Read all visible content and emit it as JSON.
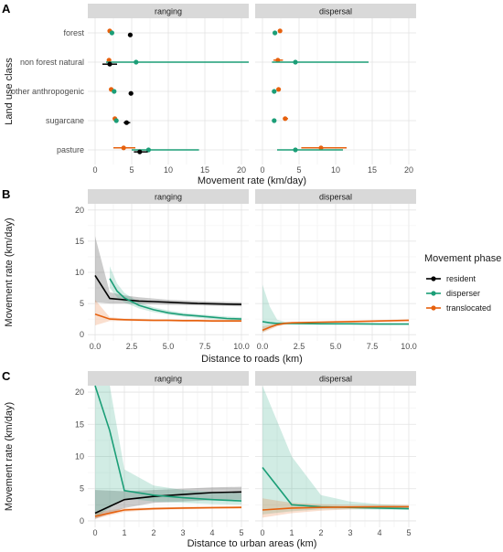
{
  "chart_data": {
    "legend": {
      "title": "Movement phase",
      "placement": "right",
      "entries": [
        {
          "name": "resident",
          "color": "#000000"
        },
        {
          "name": "disperser",
          "color": "#1b9e77"
        },
        {
          "name": "translocated",
          "color": "#e6610e"
        }
      ]
    },
    "panels": [
      {
        "tag": "A",
        "type": "dot-interval",
        "xlabel": "Movement rate (km/day)",
        "ylabel": "Land use class",
        "xlim": [
          -1,
          21
        ],
        "xticks": [
          0,
          5,
          10,
          15,
          20
        ],
        "categories": [
          "forest",
          "non forest natural",
          "other anthropogenic",
          "sugarcane",
          "pasture"
        ],
        "facets": [
          {
            "name": "ranging",
            "points": [
              {
                "cat": "forest",
                "series": "translocated",
                "est": 2.0,
                "lo": 1.8,
                "hi": 2.2
              },
              {
                "cat": "forest",
                "series": "disperser",
                "est": 2.3,
                "lo": 2.1,
                "hi": 2.5
              },
              {
                "cat": "forest",
                "series": "resident",
                "est": 4.8,
                "lo": 4.5,
                "hi": 5.1
              },
              {
                "cat": "non forest natural",
                "series": "translocated",
                "est": 1.9,
                "lo": 1.7,
                "hi": 2.1
              },
              {
                "cat": "non forest natural",
                "series": "disperser",
                "est": 5.6,
                "lo": 1.5,
                "hi": 21
              },
              {
                "cat": "non forest natural",
                "series": "resident",
                "est": 2.0,
                "lo": 1.0,
                "hi": 3.0
              },
              {
                "cat": "other anthropogenic",
                "series": "translocated",
                "est": 2.2,
                "lo": 2.0,
                "hi": 2.4
              },
              {
                "cat": "other anthropogenic",
                "series": "disperser",
                "est": 2.6,
                "lo": 2.4,
                "hi": 2.8
              },
              {
                "cat": "other anthropogenic",
                "series": "resident",
                "est": 4.9,
                "lo": 4.6,
                "hi": 5.2
              },
              {
                "cat": "sugarcane",
                "series": "translocated",
                "est": 2.7,
                "lo": 2.5,
                "hi": 2.9
              },
              {
                "cat": "sugarcane",
                "series": "disperser",
                "est": 2.9,
                "lo": 2.7,
                "hi": 3.1
              },
              {
                "cat": "sugarcane",
                "series": "resident",
                "est": 4.3,
                "lo": 3.9,
                "hi": 4.8
              },
              {
                "cat": "pasture",
                "series": "translocated",
                "est": 3.9,
                "lo": 2.5,
                "hi": 5.5
              },
              {
                "cat": "pasture",
                "series": "disperser",
                "est": 7.3,
                "lo": 5.0,
                "hi": 14.2
              },
              {
                "cat": "pasture",
                "series": "resident",
                "est": 6.1,
                "lo": 5.3,
                "hi": 7.2
              }
            ]
          },
          {
            "name": "dispersal",
            "points": [
              {
                "cat": "forest",
                "series": "translocated",
                "est": 2.4,
                "lo": 2.2,
                "hi": 2.6
              },
              {
                "cat": "forest",
                "series": "disperser",
                "est": 1.7,
                "lo": 1.5,
                "hi": 1.9
              },
              {
                "cat": "non forest natural",
                "series": "translocated",
                "est": 2.1,
                "lo": 1.5,
                "hi": 2.8
              },
              {
                "cat": "non forest natural",
                "series": "disperser",
                "est": 4.5,
                "lo": 1.3,
                "hi": 14.5
              },
              {
                "cat": "other anthropogenic",
                "series": "translocated",
                "est": 2.2,
                "lo": 2.0,
                "hi": 2.4
              },
              {
                "cat": "other anthropogenic",
                "series": "disperser",
                "est": 1.6,
                "lo": 1.4,
                "hi": 1.8
              },
              {
                "cat": "sugarcane",
                "series": "translocated",
                "est": 3.1,
                "lo": 2.8,
                "hi": 3.5
              },
              {
                "cat": "sugarcane",
                "series": "disperser",
                "est": 1.6,
                "lo": 1.4,
                "hi": 1.8
              },
              {
                "cat": "pasture",
                "series": "translocated",
                "est": 8.0,
                "lo": 5.3,
                "hi": 11.5
              },
              {
                "cat": "pasture",
                "series": "disperser",
                "est": 4.5,
                "lo": 2.0,
                "hi": 11.0
              }
            ]
          }
        ]
      },
      {
        "tag": "B",
        "type": "line-ribbon",
        "xlabel": "Distance to roads (km)",
        "ylabel": "Movement rate (km/day)",
        "xlim": [
          -0.5,
          10.5
        ],
        "ylim": [
          -1,
          21
        ],
        "xticks": [
          0,
          2.5,
          5,
          7.5,
          10
        ],
        "xtick_labels": [
          "0.0",
          "2.5",
          "5.0",
          "7.5",
          "10.0"
        ],
        "yticks": [
          0,
          5,
          10,
          15,
          20
        ],
        "facets": [
          {
            "name": "ranging",
            "series": [
              {
                "series": "resident",
                "x": [
                  0,
                  1,
                  2,
                  3,
                  4,
                  5,
                  6,
                  7,
                  8,
                  9,
                  10
                ],
                "y": [
                  9.5,
                  5.8,
                  5.6,
                  5.4,
                  5.3,
                  5.2,
                  5.1,
                  5.0,
                  4.95,
                  4.9,
                  4.85
                ],
                "lo": [
                  5.2,
                  5.0,
                  5.0,
                  4.9,
                  4.85,
                  4.8,
                  4.75,
                  4.7,
                  4.65,
                  4.6,
                  4.55
                ],
                "hi": [
                  15.8,
                  6.8,
                  6.3,
                  6.0,
                  5.8,
                  5.6,
                  5.5,
                  5.4,
                  5.3,
                  5.25,
                  5.2
                ]
              },
              {
                "series": "disperser",
                "x": [
                  1,
                  1.5,
                  2,
                  3,
                  4,
                  5,
                  6,
                  7,
                  8,
                  9,
                  10
                ],
                "y": [
                  9.0,
                  7.0,
                  5.9,
                  4.7,
                  4.0,
                  3.5,
                  3.2,
                  3.0,
                  2.8,
                  2.6,
                  2.5
                ],
                "lo": [
                  7.5,
                  6.0,
                  5.2,
                  4.2,
                  3.6,
                  3.2,
                  2.9,
                  2.7,
                  2.5,
                  2.35,
                  2.2
                ],
                "hi": [
                  11.0,
                  8.2,
                  6.7,
                  5.2,
                  4.4,
                  3.9,
                  3.5,
                  3.3,
                  3.1,
                  2.9,
                  2.8
                ]
              },
              {
                "series": "translocated",
                "x": [
                  0,
                  1,
                  2,
                  3,
                  4,
                  5,
                  6,
                  7,
                  8,
                  9,
                  10
                ],
                "y": [
                  3.3,
                  2.5,
                  2.4,
                  2.35,
                  2.3,
                  2.3,
                  2.25,
                  2.25,
                  2.2,
                  2.2,
                  2.2
                ],
                "lo": [
                  1.5,
                  2.2,
                  2.2,
                  2.15,
                  2.1,
                  2.1,
                  2.05,
                  2.05,
                  2.0,
                  2.0,
                  2.0
                ],
                "hi": [
                  5.6,
                  2.8,
                  2.6,
                  2.55,
                  2.5,
                  2.5,
                  2.45,
                  2.45,
                  2.4,
                  2.4,
                  2.4
                ]
              }
            ]
          },
          {
            "name": "dispersal",
            "series": [
              {
                "series": "disperser",
                "x": [
                  0,
                  0.5,
                  1,
                  1.5,
                  2,
                  4,
                  6,
                  8,
                  10
                ],
                "y": [
                  2.1,
                  1.9,
                  1.8,
                  1.8,
                  1.8,
                  1.75,
                  1.75,
                  1.7,
                  1.7
                ],
                "lo": [
                  0.4,
                  1.0,
                  1.5,
                  1.6,
                  1.6,
                  1.6,
                  1.6,
                  1.55,
                  1.55
                ],
                "hi": [
                  8.0,
                  4.5,
                  2.4,
                  2.1,
                  2.0,
                  1.9,
                  1.9,
                  1.85,
                  1.85
                ]
              },
              {
                "series": "translocated",
                "x": [
                  0,
                  0.5,
                  1,
                  1.5,
                  2,
                  4,
                  6,
                  8,
                  10
                ],
                "y": [
                  0.7,
                  1.2,
                  1.6,
                  1.8,
                  1.9,
                  2.0,
                  2.1,
                  2.2,
                  2.3
                ],
                "lo": [
                  0.3,
                  0.8,
                  1.3,
                  1.6,
                  1.75,
                  1.85,
                  1.95,
                  2.05,
                  2.1
                ],
                "hi": [
                  1.3,
                  1.6,
                  1.9,
                  2.0,
                  2.05,
                  2.15,
                  2.25,
                  2.35,
                  2.5
                ]
              }
            ]
          }
        ]
      },
      {
        "tag": "C",
        "type": "line-ribbon",
        "xlabel": "Distance to urban areas (km)",
        "ylabel": "Movement rate (km/day)",
        "xlim": [
          -0.25,
          5.25
        ],
        "ylim": [
          -1,
          21
        ],
        "xticks": [
          0,
          1,
          2,
          3,
          4,
          5
        ],
        "xtick_labels": [
          "0",
          "1",
          "2",
          "3",
          "4",
          "5"
        ],
        "yticks": [
          0,
          5,
          10,
          15,
          20
        ],
        "facets": [
          {
            "name": "ranging",
            "series": [
              {
                "series": "resident",
                "x": [
                  0,
                  1,
                  2,
                  3,
                  4,
                  5
                ],
                "y": [
                  1.2,
                  3.3,
                  3.8,
                  4.1,
                  4.4,
                  4.5
                ],
                "lo": [
                  0.3,
                  2.0,
                  2.8,
                  3.0,
                  3.2,
                  3.3
                ],
                "hi": [
                  4.8,
                  4.6,
                  4.8,
                  5.0,
                  5.2,
                  5.3
                ]
              },
              {
                "series": "disperser",
                "x": [
                  0,
                  0.5,
                  1,
                  2,
                  3,
                  4,
                  5
                ],
                "y": [
                  21,
                  14,
                  4.7,
                  4.0,
                  3.6,
                  3.3,
                  3.1
                ],
                "lo": [
                  0.5,
                  2.0,
                  3.5,
                  3.0,
                  2.8,
                  2.6,
                  2.5
                ],
                "hi": [
                  21,
                  21,
                  8.0,
                  5.5,
                  4.8,
                  4.5,
                  4.3
                ]
              },
              {
                "series": "translocated",
                "x": [
                  0,
                  1,
                  2,
                  3,
                  4,
                  5
                ],
                "y": [
                  0.7,
                  1.7,
                  1.9,
                  2.0,
                  2.05,
                  2.1
                ],
                "lo": [
                  0.3,
                  1.4,
                  1.7,
                  1.8,
                  1.85,
                  1.9
                ],
                "hi": [
                  1.3,
                  2.0,
                  2.1,
                  2.2,
                  2.25,
                  2.3
                ]
              }
            ]
          },
          {
            "name": "dispersal",
            "series": [
              {
                "series": "disperser",
                "x": [
                  0,
                  1,
                  2,
                  3,
                  4,
                  5
                ],
                "y": [
                  8.3,
                  2.5,
                  2.2,
                  2.1,
                  2.0,
                  1.9
                ],
                "lo": [
                  1.0,
                  1.5,
                  1.8,
                  1.8,
                  1.75,
                  1.7
                ],
                "hi": [
                  21,
                  10.0,
                  4.0,
                  3.0,
                  2.6,
                  2.4
                ]
              },
              {
                "series": "translocated",
                "x": [
                  0,
                  1,
                  2,
                  3,
                  4,
                  5
                ],
                "y": [
                  1.7,
                  2.0,
                  2.1,
                  2.15,
                  2.2,
                  2.2
                ],
                "lo": [
                  0.5,
                  1.2,
                  1.6,
                  1.8,
                  1.9,
                  1.9
                ],
                "hi": [
                  3.5,
                  2.8,
                  2.6,
                  2.5,
                  2.5,
                  2.5
                ]
              }
            ]
          }
        ]
      }
    ]
  }
}
